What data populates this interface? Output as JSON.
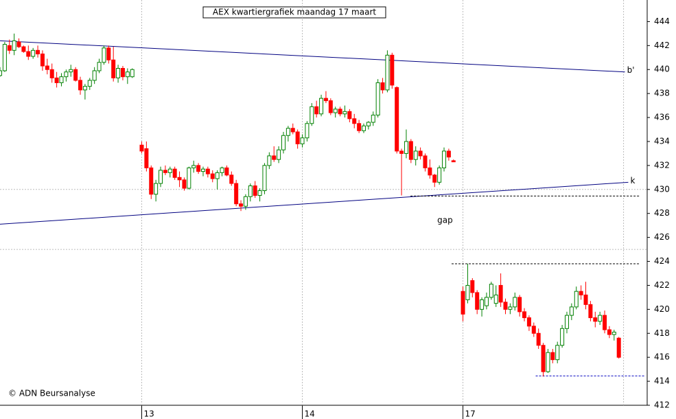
{
  "chart_data": {
    "type": "candlestick",
    "title": "AEX kwartiergrafiek maandag 17 maart",
    "credit": "© ADN Beursanalyse",
    "up_color": "#008000",
    "down_color": "#ff0000",
    "xlim": [
      0,
      137
    ],
    "ylim": [
      412,
      445.8
    ],
    "xticks": [
      {
        "value": 30,
        "label": "13"
      },
      {
        "value": 64,
        "label": "14"
      },
      {
        "value": 98,
        "label": "17"
      }
    ],
    "xgrid": [
      30,
      64,
      98,
      132
    ],
    "ygrid": [
      425,
      430
    ],
    "yticks": [
      412,
      414,
      416,
      418,
      420,
      422,
      424,
      426,
      428,
      430,
      432,
      434,
      436,
      438,
      440,
      442,
      444
    ],
    "x": [
      0,
      1,
      2,
      3,
      4,
      5,
      6,
      7,
      8,
      9,
      10,
      11,
      12,
      13,
      14,
      15,
      16,
      17,
      18,
      19,
      20,
      21,
      22,
      23,
      24,
      25,
      26,
      27,
      28,
      30,
      31,
      32,
      33,
      34,
      35,
      36,
      37,
      38,
      39,
      40,
      41,
      42,
      43,
      44,
      45,
      46,
      47,
      48,
      49,
      50,
      51,
      52,
      53,
      54,
      55,
      56,
      57,
      58,
      59,
      60,
      61,
      62,
      63,
      64,
      65,
      66,
      67,
      68,
      69,
      70,
      71,
      72,
      73,
      74,
      75,
      76,
      77,
      78,
      79,
      80,
      81,
      82,
      83,
      84,
      85,
      86,
      87,
      88,
      89,
      90,
      91,
      92,
      93,
      94,
      95,
      96,
      98,
      99,
      100,
      101,
      102,
      103,
      104,
      105,
      106,
      107,
      108,
      109,
      110,
      111,
      112,
      113,
      114,
      115,
      116,
      117,
      118,
      119,
      120,
      121,
      122,
      123,
      124,
      125,
      126,
      127,
      128,
      129,
      130,
      131
    ],
    "ohlc": [
      [
        439.5,
        440.2,
        439.4,
        439.9
      ],
      [
        439.9,
        442.3,
        439.8,
        442.1
      ],
      [
        442.0,
        442.5,
        441.3,
        441.6
      ],
      [
        441.6,
        443.0,
        441.2,
        442.4
      ],
      [
        442.3,
        442.6,
        441.8,
        441.9
      ],
      [
        441.9,
        442.0,
        441.4,
        441.5
      ],
      [
        441.5,
        442.0,
        440.8,
        441.1
      ],
      [
        441.1,
        441.8,
        440.9,
        441.6
      ],
      [
        441.6,
        442.0,
        441.0,
        441.3
      ],
      [
        441.3,
        441.6,
        439.9,
        440.3
      ],
      [
        440.3,
        440.9,
        439.6,
        440.0
      ],
      [
        440.0,
        440.5,
        438.9,
        439.3
      ],
      [
        439.3,
        439.8,
        438.5,
        438.9
      ],
      [
        438.9,
        439.7,
        438.6,
        439.4
      ],
      [
        439.4,
        440.0,
        439.0,
        439.8
      ],
      [
        439.8,
        440.4,
        439.4,
        440.0
      ],
      [
        440.0,
        440.2,
        439.0,
        439.1
      ],
      [
        439.1,
        439.4,
        437.9,
        438.3
      ],
      [
        438.3,
        438.8,
        437.5,
        438.6
      ],
      [
        438.6,
        439.3,
        438.3,
        439.1
      ],
      [
        439.1,
        440.2,
        438.8,
        439.9
      ],
      [
        439.9,
        440.9,
        439.7,
        440.6
      ],
      [
        440.6,
        442.0,
        440.4,
        441.8
      ],
      [
        441.8,
        442.0,
        440.5,
        440.8
      ],
      [
        440.8,
        441.9,
        439.0,
        439.3
      ],
      [
        439.3,
        440.4,
        438.9,
        440.1
      ],
      [
        440.1,
        440.3,
        439.1,
        439.4
      ],
      [
        439.4,
        440.1,
        438.8,
        439.8
      ],
      [
        439.4,
        440.1,
        439.3,
        440.0
      ],
      [
        433.7,
        434.0,
        433.0,
        433.2
      ],
      [
        433.4,
        434.0,
        431.5,
        431.8
      ],
      [
        431.8,
        432.0,
        429.2,
        429.6
      ],
      [
        429.6,
        430.8,
        429.0,
        430.5
      ],
      [
        430.5,
        431.9,
        430.2,
        431.6
      ],
      [
        431.6,
        432.0,
        431.2,
        431.4
      ],
      [
        431.4,
        431.9,
        431.0,
        431.7
      ],
      [
        431.7,
        431.9,
        430.8,
        431.0
      ],
      [
        431.0,
        431.5,
        430.2,
        430.8
      ],
      [
        430.8,
        431.0,
        429.9,
        430.1
      ],
      [
        430.1,
        431.9,
        430.0,
        431.8
      ],
      [
        431.8,
        432.4,
        431.4,
        432.0
      ],
      [
        432.0,
        432.2,
        431.3,
        431.5
      ],
      [
        431.5,
        431.9,
        431.1,
        431.7
      ],
      [
        431.7,
        431.9,
        431.0,
        431.3
      ],
      [
        431.3,
        431.6,
        430.6,
        430.9
      ],
      [
        430.9,
        431.6,
        430.0,
        431.4
      ],
      [
        431.4,
        431.9,
        431.1,
        431.8
      ],
      [
        431.8,
        432.0,
        431.1,
        431.2
      ],
      [
        431.2,
        431.5,
        430.3,
        430.5
      ],
      [
        430.5,
        430.8,
        428.6,
        428.8
      ],
      [
        428.8,
        429.1,
        428.2,
        428.6
      ],
      [
        428.6,
        429.6,
        428.3,
        429.4
      ],
      [
        429.4,
        430.5,
        429.0,
        430.3
      ],
      [
        430.3,
        430.7,
        429.3,
        429.5
      ],
      [
        429.5,
        430.1,
        429.0,
        429.9
      ],
      [
        429.9,
        432.2,
        429.6,
        432.0
      ],
      [
        432.0,
        433.1,
        431.7,
        432.8
      ],
      [
        432.8,
        433.6,
        432.3,
        432.5
      ],
      [
        432.5,
        433.6,
        432.2,
        433.3
      ],
      [
        433.3,
        434.8,
        433.0,
        434.5
      ],
      [
        434.5,
        435.3,
        434.0,
        435.1
      ],
      [
        435.1,
        435.5,
        434.6,
        434.8
      ],
      [
        434.8,
        435.0,
        433.4,
        433.8
      ],
      [
        433.8,
        434.6,
        433.5,
        434.3
      ],
      [
        434.3,
        435.7,
        434.0,
        435.5
      ],
      [
        435.5,
        437.2,
        435.3,
        436.9
      ],
      [
        436.9,
        437.4,
        436.0,
        436.3
      ],
      [
        436.3,
        437.9,
        436.1,
        437.6
      ],
      [
        437.6,
        438.2,
        437.2,
        437.4
      ],
      [
        437.4,
        437.6,
        436.2,
        436.4
      ],
      [
        436.4,
        436.9,
        436.0,
        436.7
      ],
      [
        436.7,
        436.9,
        436.1,
        436.3
      ],
      [
        436.3,
        437.0,
        436.0,
        436.5
      ],
      [
        436.5,
        436.7,
        435.6,
        435.9
      ],
      [
        435.9,
        436.3,
        435.1,
        435.5
      ],
      [
        435.5,
        435.8,
        434.7,
        434.9
      ],
      [
        434.9,
        435.5,
        434.7,
        435.3
      ],
      [
        435.3,
        435.7,
        435.0,
        435.6
      ],
      [
        435.6,
        436.5,
        435.3,
        436.2
      ],
      [
        436.2,
        439.2,
        436.0,
        438.9
      ],
      [
        438.9,
        439.3,
        438.0,
        438.3
      ],
      [
        438.3,
        441.6,
        438.1,
        441.2
      ],
      [
        441.2,
        441.4,
        438.4,
        438.7
      ],
      [
        438.5,
        438.6,
        433.0,
        433.2
      ],
      [
        433.2,
        433.4,
        429.5,
        433.0
      ],
      [
        433.0,
        435.0,
        432.6,
        434.0
      ],
      [
        434.0,
        434.2,
        432.2,
        432.5
      ],
      [
        432.5,
        433.6,
        432.0,
        433.2
      ],
      [
        433.2,
        433.5,
        432.5,
        432.8
      ],
      [
        432.8,
        433.0,
        431.5,
        431.8
      ],
      [
        431.8,
        432.5,
        430.9,
        431.2
      ],
      [
        431.2,
        431.3,
        430.2,
        430.6
      ],
      [
        430.6,
        432.0,
        430.4,
        431.8
      ],
      [
        431.8,
        433.5,
        431.5,
        433.2
      ],
      [
        433.2,
        433.4,
        432.4,
        432.7
      ],
      [
        432.4,
        432.5,
        432.3,
        432.3
      ],
      [
        421.5,
        421.9,
        419.0,
        419.6
      ],
      [
        420.8,
        423.8,
        420.5,
        422.0
      ],
      [
        422.4,
        422.6,
        421.0,
        421.4
      ],
      [
        421.4,
        421.6,
        419.6,
        420.0
      ],
      [
        420.0,
        421.0,
        419.4,
        420.8
      ],
      [
        420.3,
        421.4,
        420.0,
        421.0
      ],
      [
        421.0,
        422.3,
        420.8,
        422.1
      ],
      [
        420.5,
        422.0,
        420.2,
        421.2
      ],
      [
        422.0,
        423.0,
        420.2,
        420.6
      ],
      [
        420.6,
        420.9,
        419.6,
        420.0
      ],
      [
        420.0,
        420.5,
        419.6,
        420.2
      ],
      [
        420.2,
        421.4,
        419.9,
        421.0
      ],
      [
        421.0,
        421.2,
        419.4,
        419.8
      ],
      [
        419.8,
        420.1,
        419.0,
        419.3
      ],
      [
        419.3,
        419.5,
        418.2,
        418.6
      ],
      [
        418.6,
        418.9,
        417.7,
        418.0
      ],
      [
        418.0,
        418.4,
        416.7,
        417.0
      ],
      [
        417.0,
        417.2,
        414.4,
        414.8
      ],
      [
        414.8,
        416.7,
        414.7,
        416.4
      ],
      [
        416.4,
        416.7,
        415.5,
        415.8
      ],
      [
        415.8,
        417.3,
        415.5,
        417.0
      ],
      [
        417.0,
        418.7,
        416.8,
        418.4
      ],
      [
        418.4,
        419.8,
        418.0,
        419.5
      ],
      [
        419.5,
        420.5,
        419.1,
        420.2
      ],
      [
        420.2,
        421.9,
        420.0,
        421.5
      ],
      [
        421.5,
        422.0,
        420.8,
        421.2
      ],
      [
        421.2,
        422.3,
        420.0,
        420.4
      ],
      [
        420.4,
        420.7,
        419.0,
        419.3
      ],
      [
        419.3,
        419.8,
        418.5,
        419.0
      ],
      [
        419.0,
        419.8,
        418.7,
        419.5
      ],
      [
        419.5,
        419.9,
        418.0,
        418.3
      ],
      [
        418.3,
        418.6,
        417.6,
        417.9
      ],
      [
        417.9,
        418.3,
        417.4,
        418.1
      ],
      [
        417.6,
        417.7,
        415.9,
        416.0
      ]
    ],
    "lines": [
      {
        "label": "b'",
        "x": [
          0,
          132.3
        ],
        "y": [
          442.4,
          439.8
        ],
        "color": "#000080"
      },
      {
        "label": "k",
        "x": [
          0,
          133
        ],
        "y": [
          427.1,
          430.6
        ],
        "color": "#000080"
      },
      {
        "x": [
          86.9,
          135.5
        ],
        "y": [
          429.45,
          429.45
        ],
        "color": "#000000",
        "dashed": true
      },
      {
        "x": [
          95.6,
          135.5
        ],
        "y": [
          423.8,
          423.8
        ],
        "color": "#000000",
        "dashed": true
      },
      {
        "x": [
          113.4,
          136.4
        ],
        "y": [
          414.45,
          414.45
        ],
        "color": "#0000c0",
        "dashed": true
      }
    ],
    "annotations": [
      {
        "text": "gap",
        "x": 94.2,
        "y": 427.4
      }
    ]
  }
}
